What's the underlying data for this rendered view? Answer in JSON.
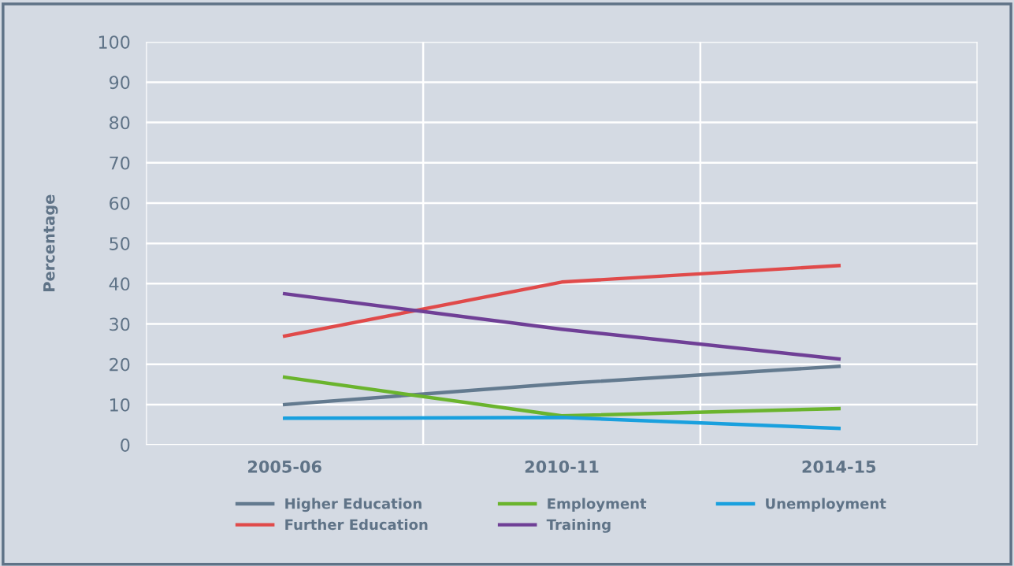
{
  "chart_data": {
    "type": "line",
    "ylabel": "Percentage",
    "categories": [
      "2005-06",
      "2010-11",
      "2014-15"
    ],
    "series": [
      {
        "name": "Higher Education",
        "color": "#637a8f",
        "values": [
          10,
          15.2,
          19.5
        ]
      },
      {
        "name": "Further Education",
        "color": "#e04a4a",
        "values": [
          27,
          40.4,
          44.5
        ]
      },
      {
        "name": "Employment",
        "color": "#6ab42d",
        "values": [
          16.8,
          7.2,
          9
        ]
      },
      {
        "name": "Training",
        "color": "#6f3f96",
        "values": [
          37.5,
          28.7,
          21.3
        ]
      },
      {
        "name": "Unemployment",
        "color": "#19a0de",
        "values": [
          6.6,
          6.8,
          4.1
        ]
      }
    ],
    "ylim": [
      0,
      100
    ],
    "yticks": [
      0,
      10,
      20,
      30,
      40,
      50,
      60,
      70,
      80,
      90,
      100
    ],
    "grid": true,
    "legend": "bottom",
    "marker": "none",
    "line_style": "solid"
  }
}
